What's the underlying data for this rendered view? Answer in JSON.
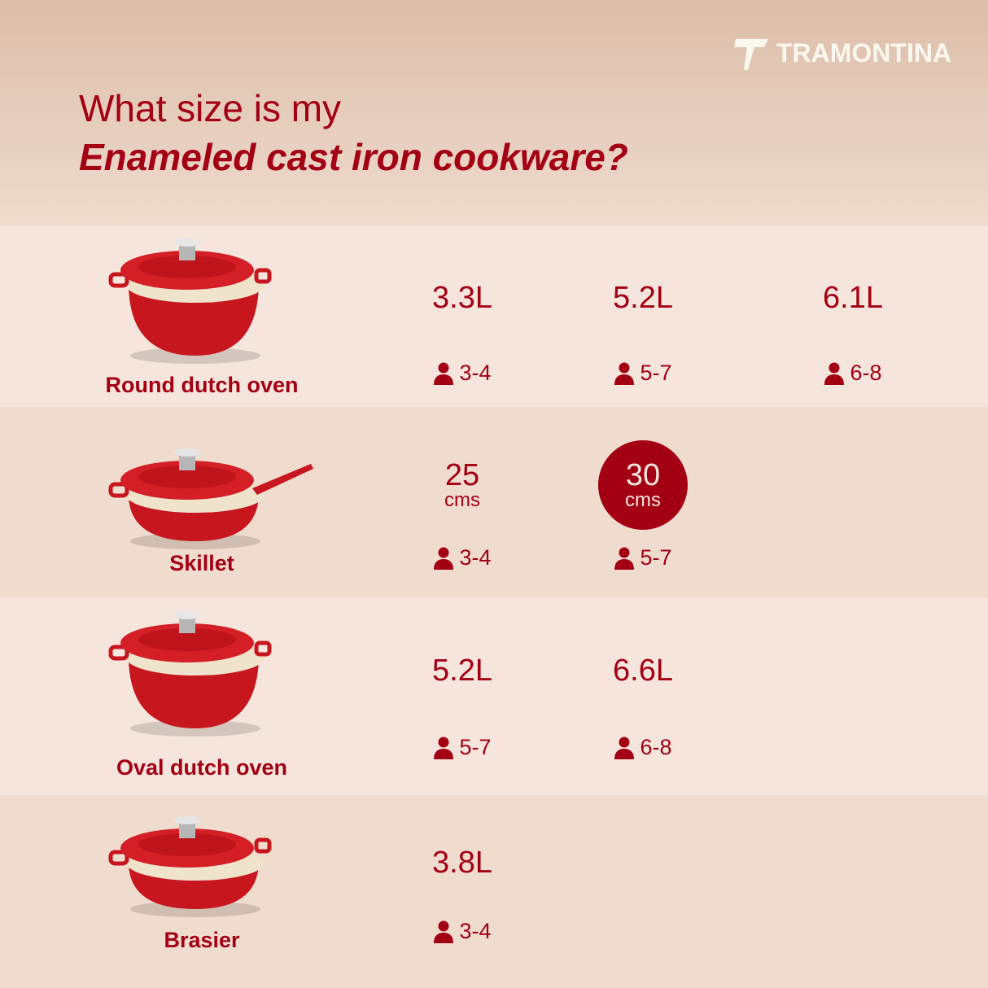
{
  "brand": {
    "name": "TRAMONTINA",
    "logo_color": "#faf7ee"
  },
  "title": {
    "line1": "What size is my",
    "line2": "Enameled cast iron cookware?"
  },
  "colors": {
    "accent": "#a30014",
    "row_light": "#f5e5dc",
    "row_dark": "#f0dccf"
  },
  "products": [
    {
      "name": "Round dutch oven",
      "options": [
        {
          "size": "3.3L",
          "serves": "3-4"
        },
        {
          "size": "5.2L",
          "serves": "5-7"
        },
        {
          "size": "6.1L",
          "serves": "6-8"
        }
      ]
    },
    {
      "name": "Skillet",
      "options": [
        {
          "size": "25",
          "unit": "cms",
          "serves": "3-4",
          "highlighted": false
        },
        {
          "size": "30",
          "unit": "cms",
          "serves": "5-7",
          "highlighted": true
        }
      ]
    },
    {
      "name": "Oval dutch oven",
      "options": [
        {
          "size": "5.2L",
          "serves": "5-7"
        },
        {
          "size": "6.6L",
          "serves": "6-8"
        }
      ]
    },
    {
      "name": "Brasier",
      "options": [
        {
          "size": "3.8L",
          "serves": "3-4"
        }
      ]
    }
  ],
  "icons": {
    "serves": "person-icon"
  }
}
